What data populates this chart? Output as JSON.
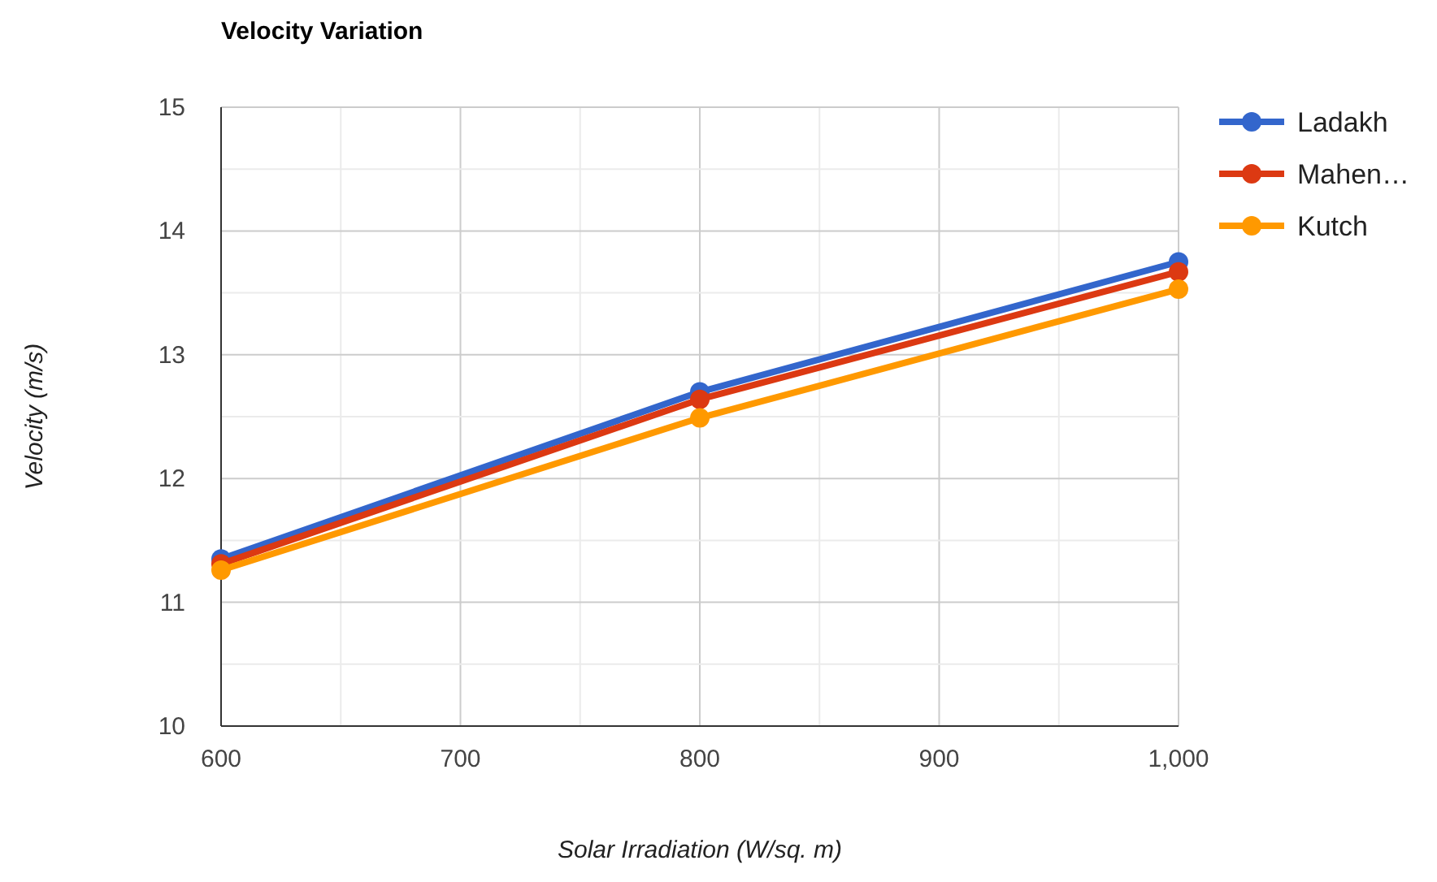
{
  "chart_data": {
    "type": "line",
    "title": "Velocity Variation",
    "xlabel": "Solar Irradiation (W/sq. m)",
    "ylabel": "Velocity (m/s)",
    "x": [
      600,
      800,
      1000
    ],
    "series": [
      {
        "name": "Ladakh",
        "color": "#3366cc",
        "values": [
          11.35,
          12.7,
          13.75
        ]
      },
      {
        "name": "Mahen…",
        "color": "#dc3912",
        "values": [
          11.31,
          12.64,
          13.67
        ]
      },
      {
        "name": "Kutch",
        "color": "#ff9900",
        "values": [
          11.26,
          12.49,
          13.53
        ]
      }
    ],
    "xlim": [
      600,
      1000
    ],
    "xticks": [
      600,
      {
        "value": 650,
        "label": null
      },
      700,
      {
        "value": 750,
        "label": null
      },
      800,
      {
        "value": 850,
        "label": null
      },
      900,
      {
        "value": 950,
        "label": null
      },
      {
        "value": 1000,
        "label": "1,000"
      }
    ],
    "ylim": [
      10,
      15
    ],
    "yticks": [
      10,
      {
        "value": 10.5,
        "label": null
      },
      11,
      {
        "value": 11.5,
        "label": null
      },
      12,
      {
        "value": 12.5,
        "label": null
      },
      13,
      {
        "value": 13.5,
        "label": null
      },
      14,
      {
        "value": 14.5,
        "label": null
      },
      15
    ],
    "grid": true,
    "legend": "right",
    "marker": "circle",
    "line_style": "solid"
  }
}
